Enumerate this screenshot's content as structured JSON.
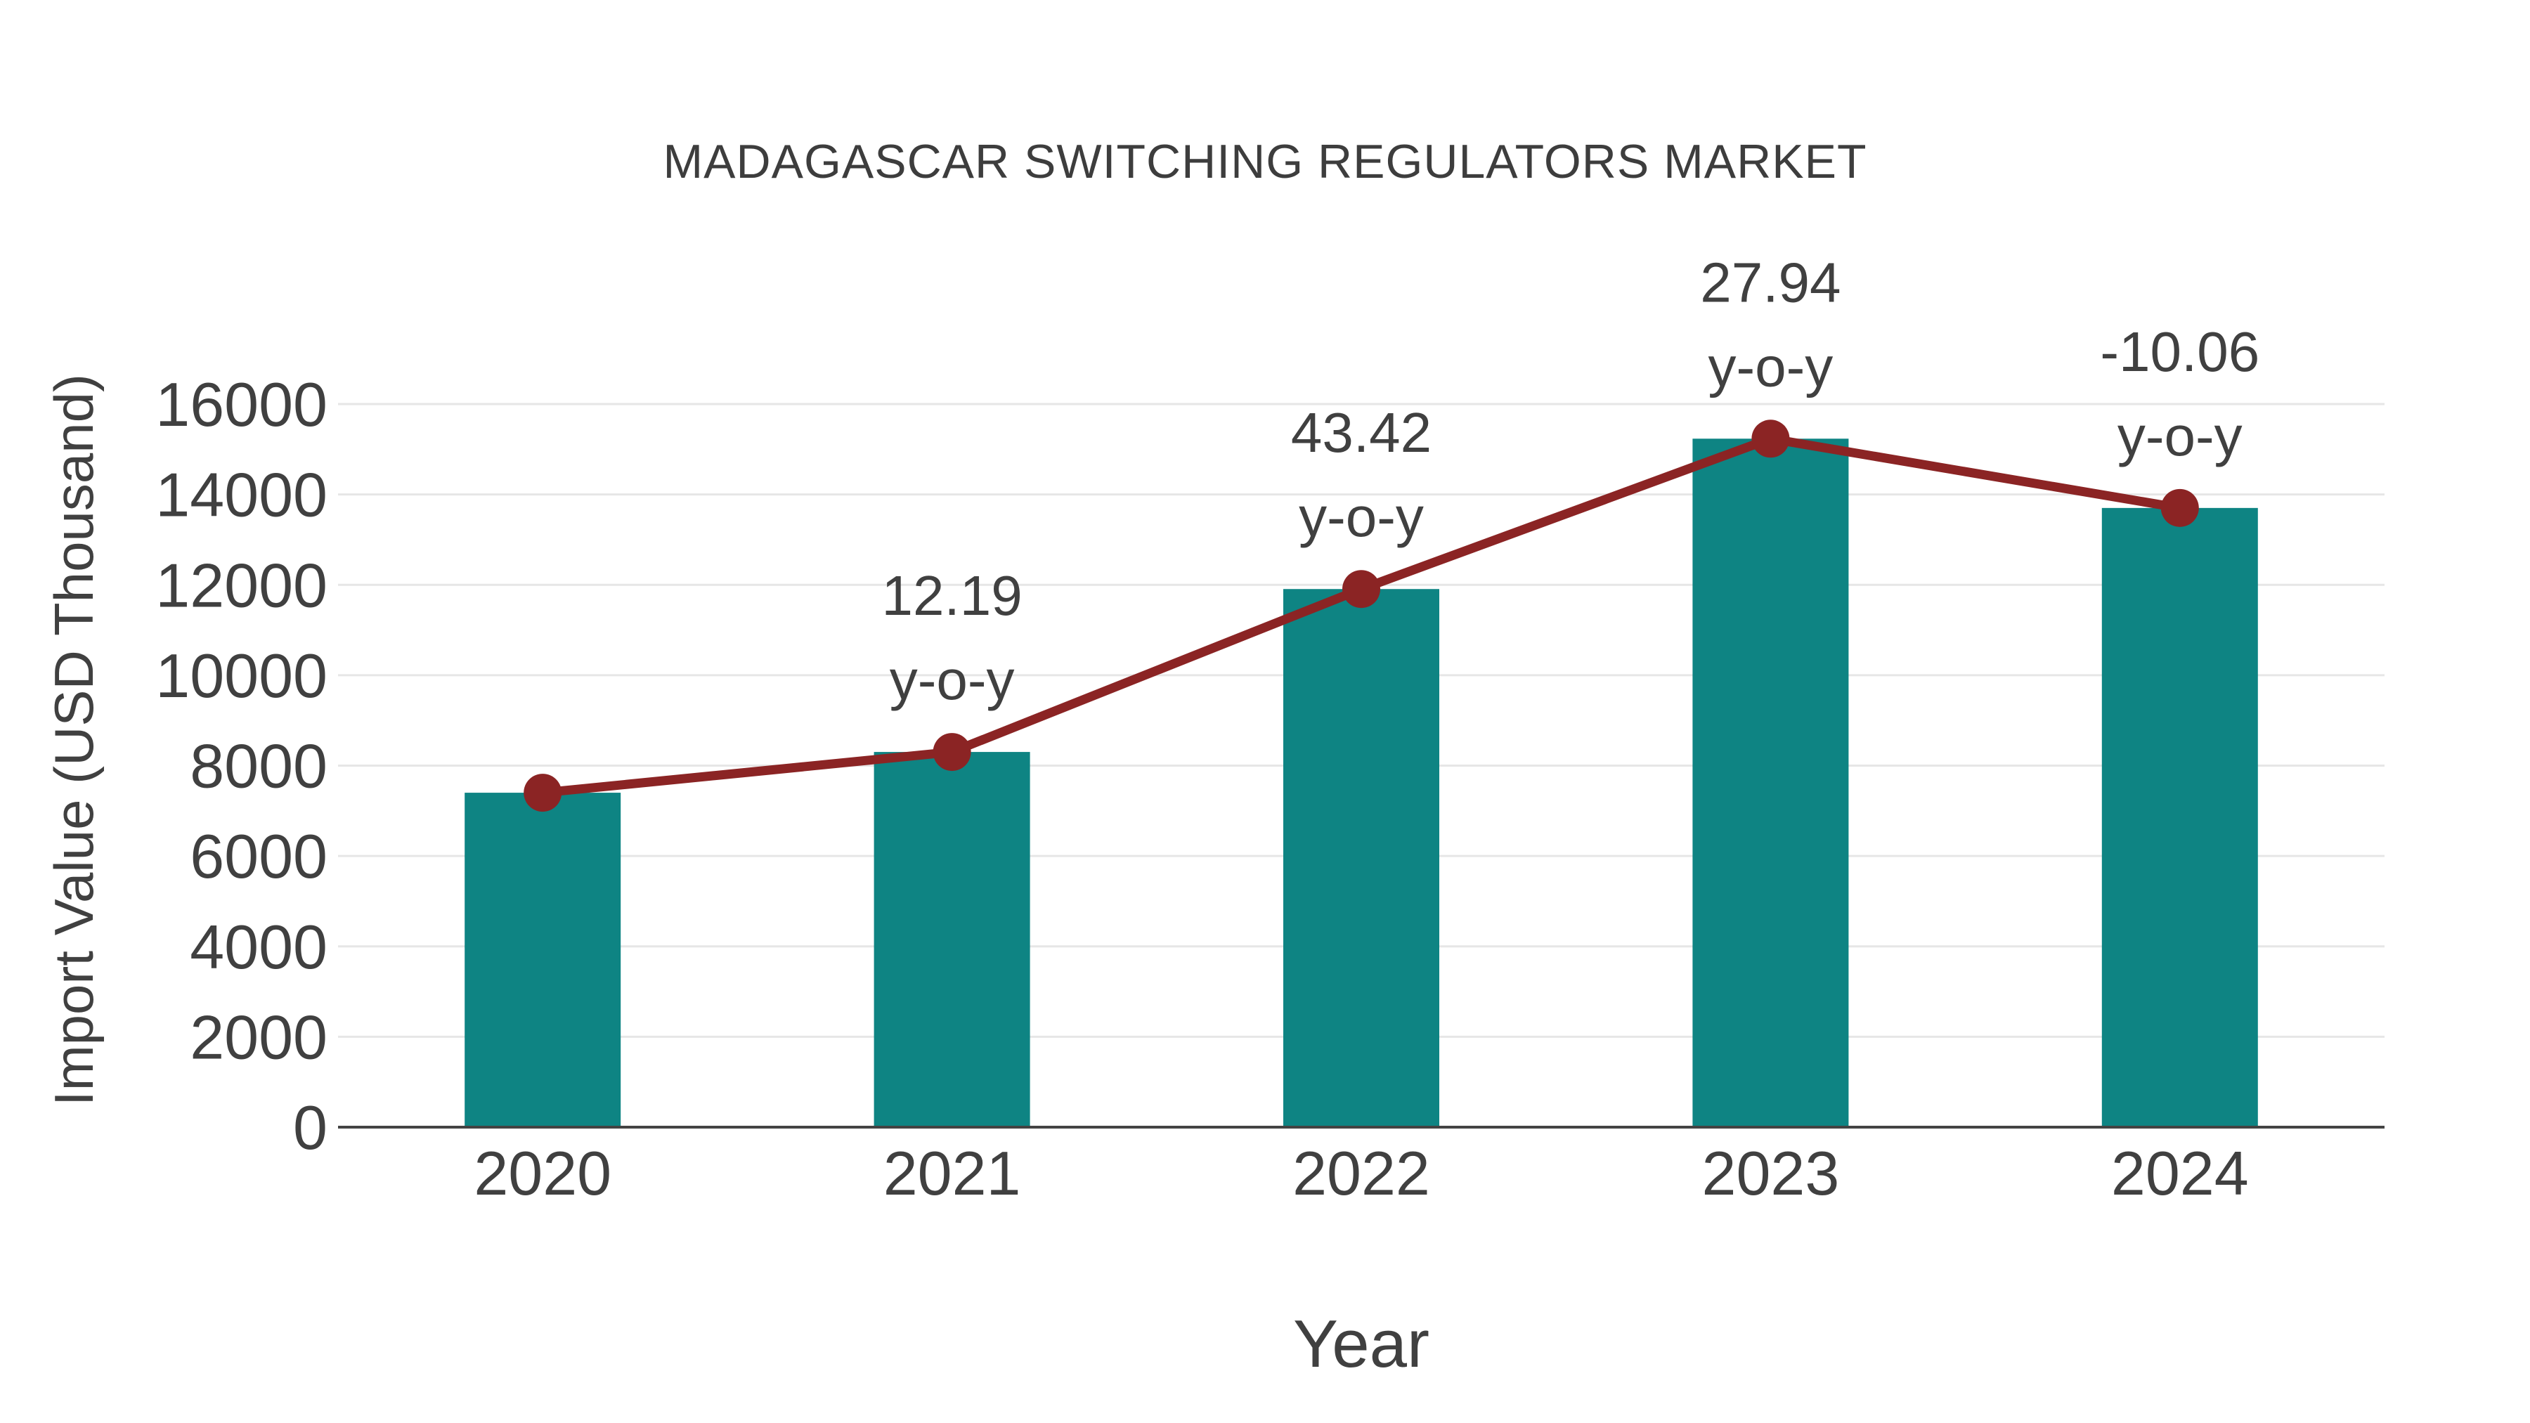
{
  "chart_data": {
    "type": "bar",
    "title": "MADAGASCAR SWITCHING REGULATORS MARKET",
    "xlabel": "Year",
    "ylabel": "Import Value (USD Thousand)",
    "categories": [
      "2020",
      "2021",
      "2022",
      "2023",
      "2024"
    ],
    "series": [
      {
        "name": "Import Value (USD Thousand)",
        "type": "bar",
        "values": [
          7400,
          8302,
          11907,
          15234,
          13701
        ]
      },
      {
        "name": "y-o-y growth line",
        "type": "line",
        "values": [
          7400,
          8302,
          11907,
          15234,
          13701
        ]
      }
    ],
    "annotations": [
      {
        "category": "2021",
        "value_line": "12.19",
        "suffix_line": "y-o-y"
      },
      {
        "category": "2022",
        "value_line": "43.42",
        "suffix_line": "y-o-y"
      },
      {
        "category": "2023",
        "value_line": "27.94",
        "suffix_line": "y-o-y"
      },
      {
        "category": "2024",
        "value_line": "-10.06",
        "suffix_line": "y-o-y"
      }
    ],
    "ylim": [
      0,
      16000
    ],
    "yticks": [
      0,
      2000,
      4000,
      6000,
      8000,
      10000,
      12000,
      14000,
      16000
    ],
    "grid": true,
    "legend": "none",
    "colors": {
      "bar": "#0e8483",
      "line": "#8b2424",
      "marker": "#8b2424",
      "text": "#404040",
      "gridline": "#e6e6e6",
      "axis": "#434343",
      "background": "#ffffff"
    }
  }
}
